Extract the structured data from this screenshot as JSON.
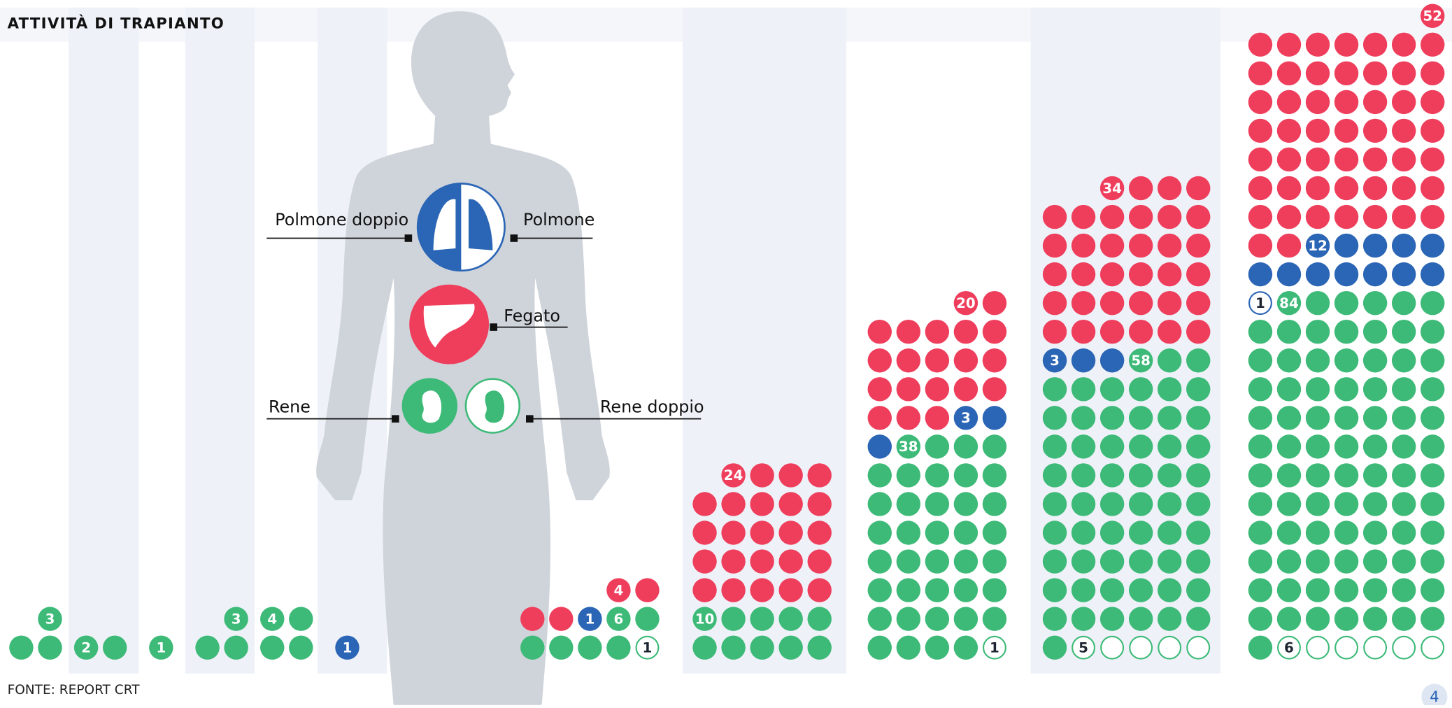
{
  "title": "ATTIVITÀ DI TRAPIANTO",
  "source": "FONTE:  REPORT CRT",
  "page_number": "4",
  "legend": [
    {
      "name": "Rene doppio",
      "color": "#3dba78",
      "outline": true
    },
    {
      "name": "Rene",
      "color": "#3dba78",
      "outline": false
    },
    {
      "name": "Polmone doppio",
      "color": "#2b65b5",
      "outline": true
    },
    {
      "name": "Polmone",
      "color": "#2b65b5",
      "outline": false
    },
    {
      "name": "Fegato",
      "color": "#ef3e5c",
      "outline": false
    }
  ],
  "columns": [
    [
      null,
      3,
      null,
      null,
      null
    ],
    [
      null,
      2,
      null,
      null,
      null
    ],
    [
      null,
      1,
      null,
      null,
      null
    ],
    [
      null,
      3,
      null,
      null,
      null
    ],
    [
      null,
      4,
      null,
      null,
      null
    ],
    [
      null,
      null,
      null,
      1,
      null
    ],
    [
      1,
      6,
      null,
      1,
      4
    ],
    [
      null,
      10,
      null,
      null,
      24
    ],
    [
      1,
      38,
      null,
      3,
      20
    ],
    [
      5,
      58,
      null,
      3,
      34
    ],
    [
      6,
      84,
      1,
      12,
      52
    ]
  ]
}
